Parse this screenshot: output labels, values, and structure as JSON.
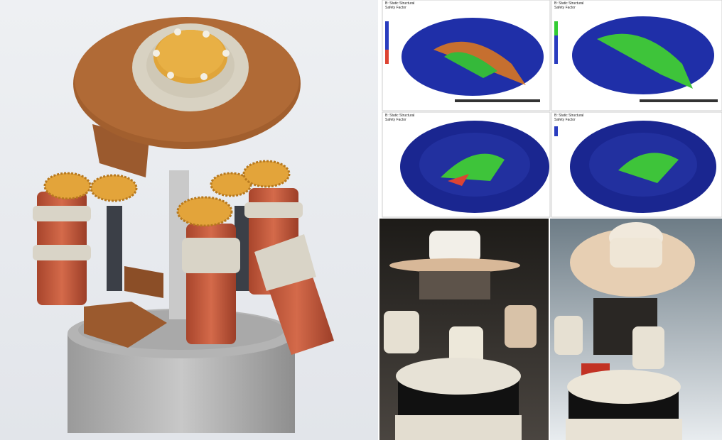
{
  "fea_panels": [
    {
      "header": "B: Static Structural",
      "subheader": "Safety Factor"
    },
    {
      "header": "B: Static Structural",
      "subheader": "Safety Factor"
    },
    {
      "header": "B: Static Structural",
      "subheader": "Safety Factor"
    },
    {
      "header": "B: Static Structural",
      "subheader": "Safety Factor"
    }
  ]
}
